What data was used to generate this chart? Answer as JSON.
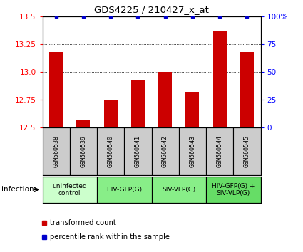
{
  "title": "GDS4225 / 210427_x_at",
  "samples": [
    "GSM560538",
    "GSM560539",
    "GSM560540",
    "GSM560541",
    "GSM560542",
    "GSM560543",
    "GSM560544",
    "GSM560545"
  ],
  "red_values": [
    13.18,
    12.56,
    12.75,
    12.93,
    13.0,
    12.82,
    13.37,
    13.18
  ],
  "blue_values": [
    100,
    100,
    100,
    100,
    100,
    100,
    100,
    100
  ],
  "ylim_left": [
    12.5,
    13.5
  ],
  "ylim_right": [
    0,
    100
  ],
  "yticks_left": [
    12.5,
    12.75,
    13.0,
    13.25,
    13.5
  ],
  "yticks_right": [
    0,
    25,
    50,
    75,
    100
  ],
  "groups": [
    {
      "label": "uninfected\ncontrol",
      "start": 0,
      "end": 2,
      "color": "#ccffcc"
    },
    {
      "label": "HIV-GFP(G)",
      "start": 2,
      "end": 4,
      "color": "#88ee88"
    },
    {
      "label": "SIV-VLP(G)",
      "start": 4,
      "end": 6,
      "color": "#88ee88"
    },
    {
      "label": "HIV-GFP(G) +\nSIV-VLP(G)",
      "start": 6,
      "end": 8,
      "color": "#66dd66"
    }
  ],
  "bar_color": "#cc0000",
  "dot_color": "#0000cc",
  "grid_color": "#000000",
  "sample_box_color": "#cccccc",
  "infection_label": "infection",
  "legend_red": "transformed count",
  "legend_blue": "percentile rank within the sample",
  "bar_width": 0.5
}
